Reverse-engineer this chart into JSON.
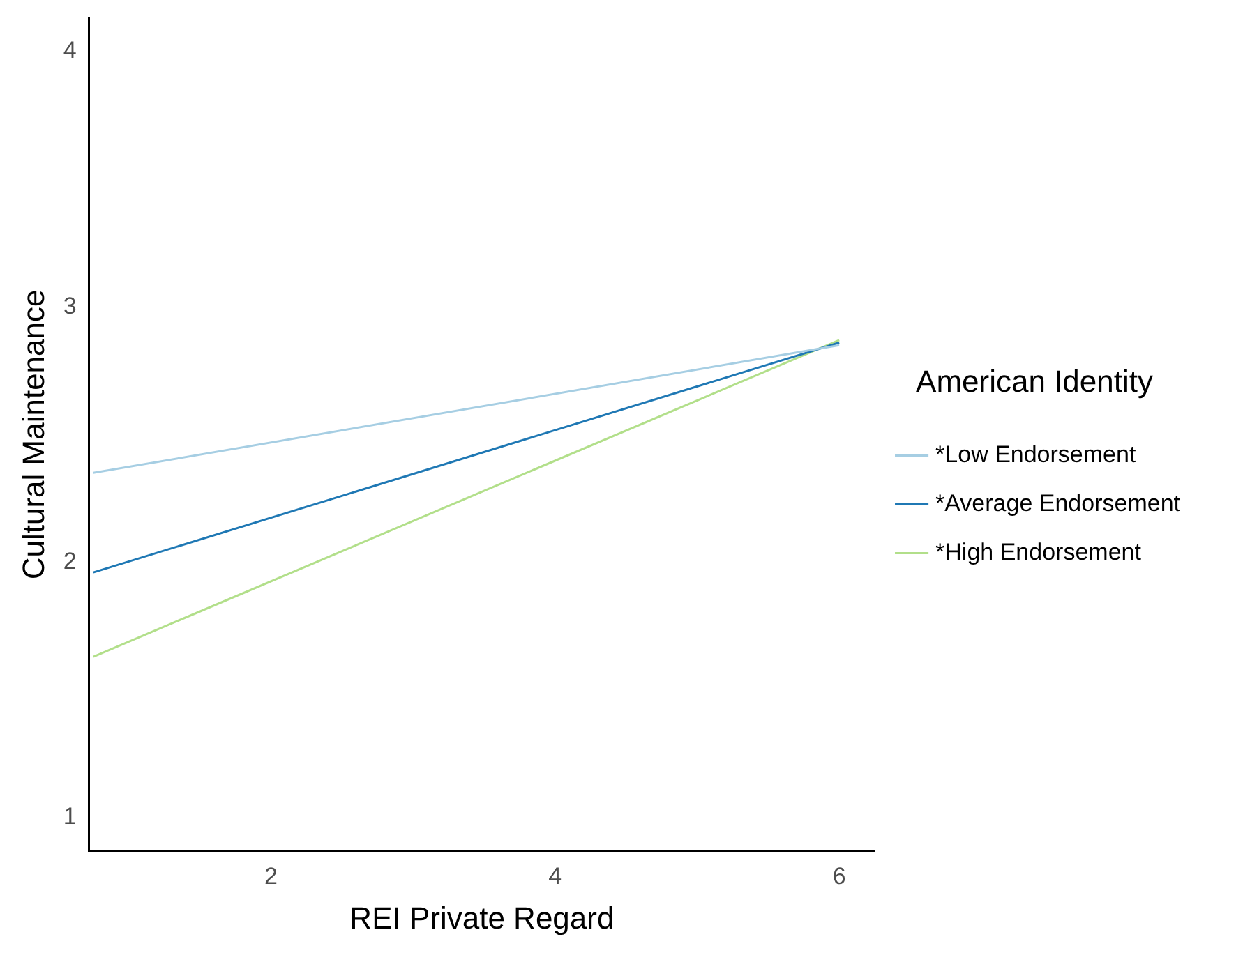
{
  "chart_data": {
    "type": "line",
    "xlabel": "REI Private Regard",
    "ylabel": "Cultural Maintenance",
    "legend_title": "American Identity",
    "legend": "right",
    "grid": false,
    "marker": "none",
    "line_style": "solid",
    "x": [
      0.75,
      6
    ],
    "series": [
      {
        "name": "*Low Endorsement",
        "color": "#a6cee3",
        "values": [
          2.35,
          2.85
        ]
      },
      {
        "name": "*Average Endorsement",
        "color": "#1f78b4",
        "values": [
          1.96,
          2.86
        ]
      },
      {
        "name": "*High Endorsement",
        "color": "#b2df8a",
        "values": [
          1.63,
          2.87
        ]
      }
    ],
    "xlim": [
      0.72,
      6.25
    ],
    "xticks": [
      2,
      4,
      6
    ],
    "ylim": [
      0.87,
      4.13
    ],
    "yticks": [
      1,
      2,
      3,
      4
    ]
  }
}
